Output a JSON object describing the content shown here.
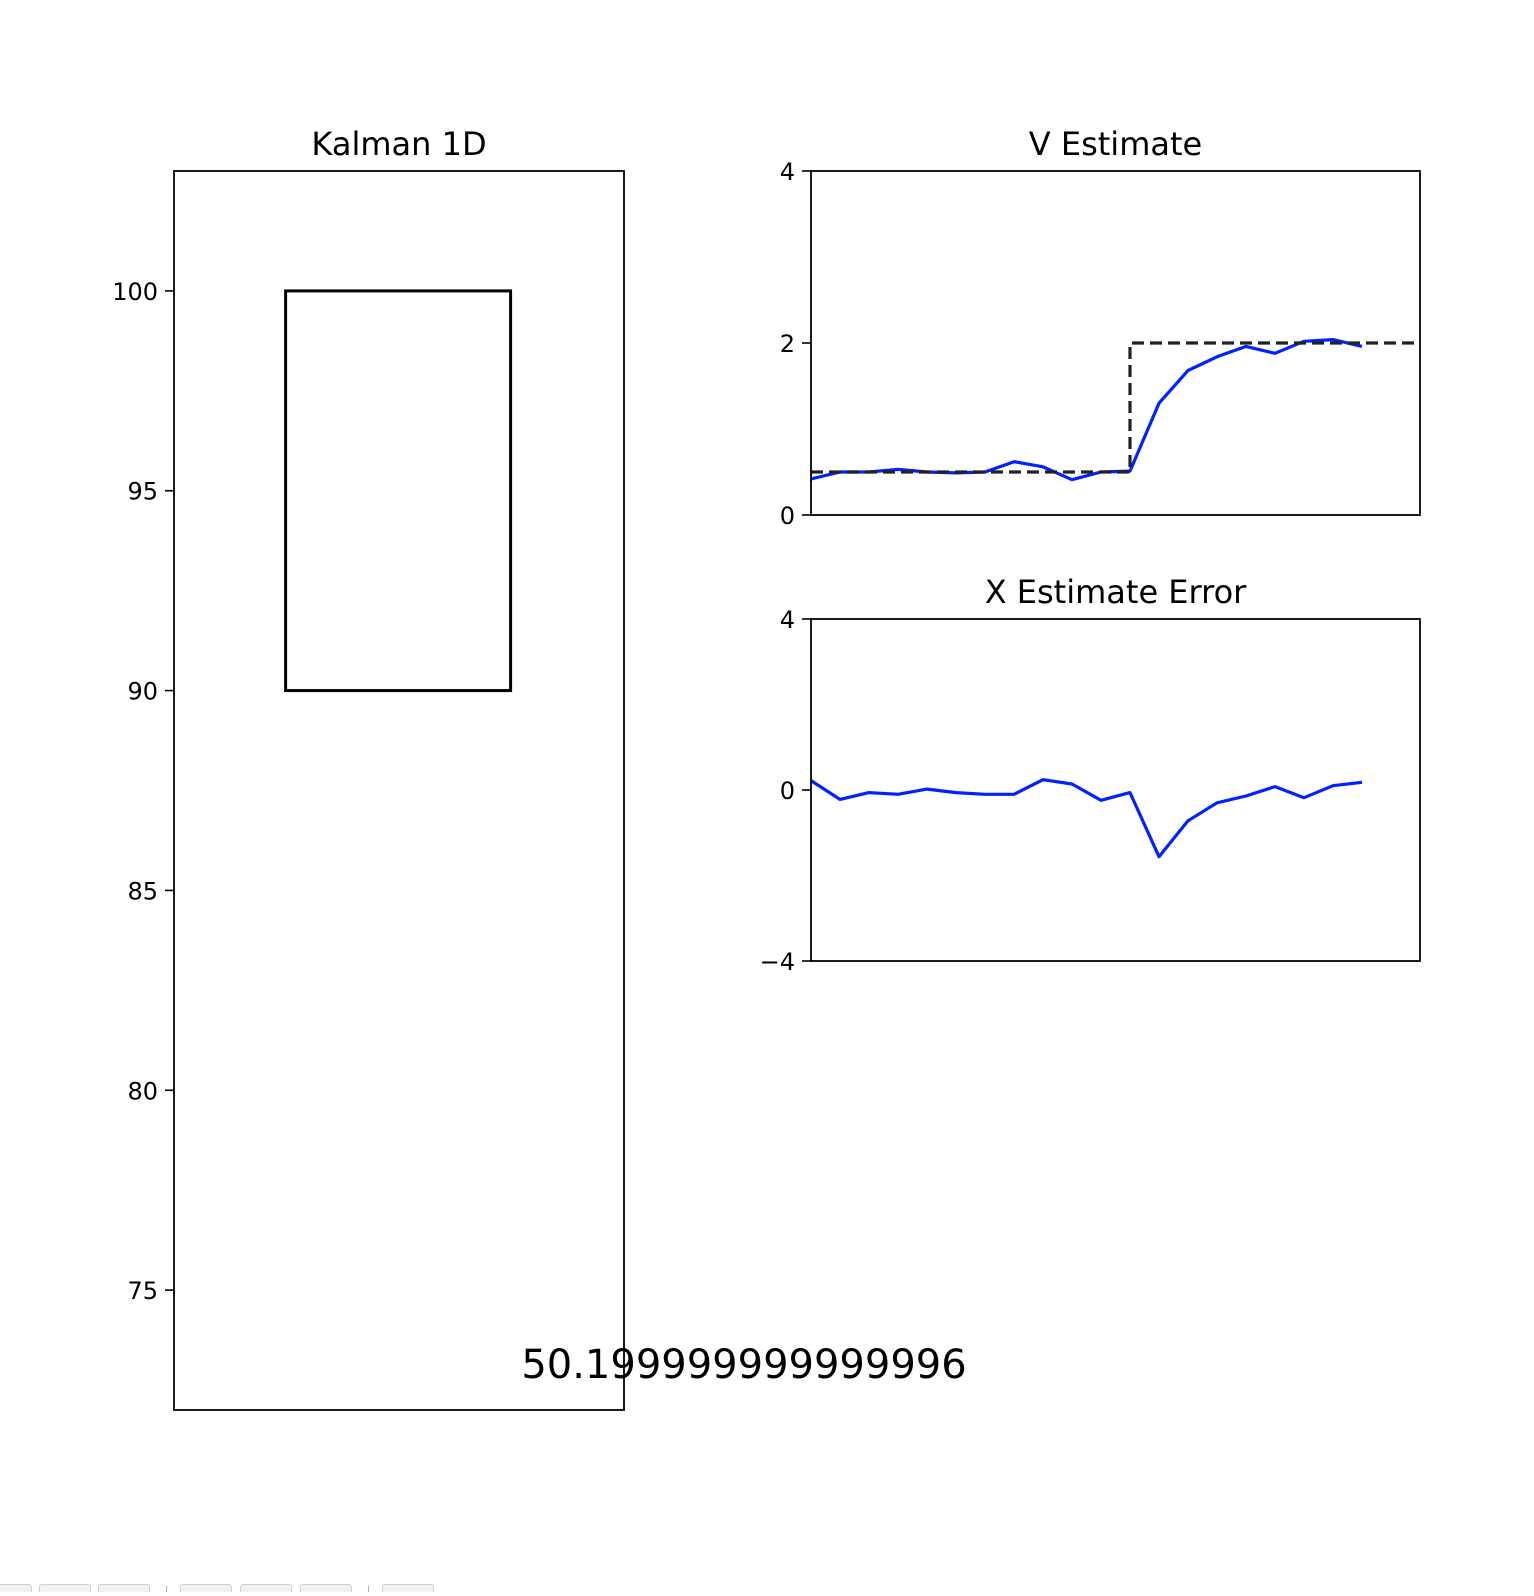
{
  "chart_data": [
    {
      "type": "other",
      "title": "Kalman 1D",
      "ylim": [
        72,
        103
      ],
      "yticks": [
        75,
        80,
        85,
        90,
        95,
        100
      ],
      "rectangle": {
        "y_bottom": 90,
        "y_top": 100
      }
    },
    {
      "type": "line",
      "title": "V Estimate",
      "ylim": [
        0,
        4
      ],
      "yticks": [
        0,
        2,
        4
      ],
      "xlim": [
        0,
        21
      ],
      "series": [
        {
          "values": [
            0.42,
            0.5,
            0.5,
            0.53,
            0.5,
            0.49,
            0.5,
            0.62,
            0.56,
            0.41,
            0.5,
            0.51,
            1.3,
            1.68,
            1.84,
            1.96,
            1.88,
            2.02,
            2.04,
            1.96
          ],
          "color": "#0022ff",
          "style": "solid"
        },
        {
          "values": [
            0.5,
            0.5,
            0.5,
            0.5,
            0.5,
            0.5,
            0.5,
            0.5,
            0.5,
            0.5,
            0.5,
            2,
            2,
            2,
            2,
            2,
            2,
            2,
            2,
            2,
            2,
            2
          ],
          "color": "#222222",
          "style": "dashed",
          "step": "post"
        }
      ]
    },
    {
      "type": "line",
      "title": "X Estimate Error",
      "ylim": [
        -4,
        4
      ],
      "yticks": [
        -4,
        0,
        4
      ],
      "ytick_labels": [
        "−4",
        "0",
        "4"
      ],
      "xlim": [
        0,
        21
      ],
      "series": [
        {
          "values": [
            0.22,
            -0.22,
            -0.06,
            -0.1,
            0.02,
            -0.06,
            -0.1,
            -0.1,
            0.24,
            0.14,
            -0.24,
            -0.06,
            -1.56,
            -0.72,
            -0.3,
            -0.14,
            0.08,
            -0.18,
            0.1,
            0.18
          ],
          "color": "#0022ff",
          "style": "solid"
        }
      ]
    }
  ],
  "annotation": "50.199999999999996"
}
